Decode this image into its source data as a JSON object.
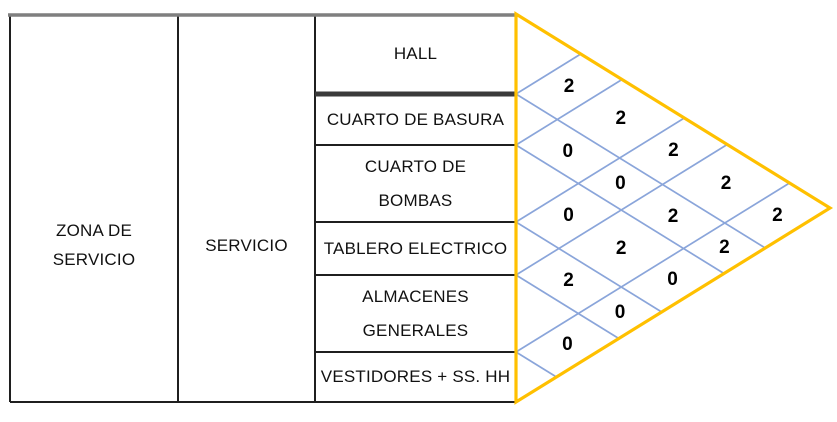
{
  "colors": {
    "background": "#FFFFFF",
    "triangle_border": "#FFC000",
    "lattice_line": "#8AA5DA",
    "table_line": "#1F1F1F",
    "table_top_line": "#7F7F7F",
    "hall_divider_line": "#3A3A3A",
    "text": "#111111"
  },
  "table": {
    "zone_label": "ZONA DE\nSERVICIO",
    "group_label": "SERVICIO",
    "rooms": [
      "HALL",
      "CUARTO DE BASURA",
      "CUARTO DE\nBOMBAS",
      "TABLERO ELECTRICO",
      "ALMACENES\nGENERALES",
      "VESTIDORES + SS. HH"
    ]
  },
  "matrix": {
    "type": "triangular-adjacency-matrix",
    "rooms": [
      "HALL",
      "CUARTO DE BASURA",
      "CUARTO DE BOMBAS",
      "TABLERO ELECTRICO",
      "ALMACENES GENERALES",
      "VESTIDORES + SS. HH"
    ],
    "cells": [
      {
        "room_a": 0,
        "room_b": 1,
        "value": "2"
      },
      {
        "room_a": 0,
        "room_b": 2,
        "value": "2"
      },
      {
        "room_a": 0,
        "room_b": 3,
        "value": "2"
      },
      {
        "room_a": 0,
        "room_b": 4,
        "value": "2"
      },
      {
        "room_a": 0,
        "room_b": 5,
        "value": "2"
      },
      {
        "room_a": 1,
        "room_b": 2,
        "value": "0"
      },
      {
        "room_a": 1,
        "room_b": 3,
        "value": "0"
      },
      {
        "room_a": 1,
        "room_b": 4,
        "value": "2"
      },
      {
        "room_a": 1,
        "room_b": 5,
        "value": "2"
      },
      {
        "room_a": 2,
        "room_b": 3,
        "value": "0"
      },
      {
        "room_a": 2,
        "room_b": 4,
        "value": "2"
      },
      {
        "room_a": 2,
        "room_b": 5,
        "value": "0"
      },
      {
        "room_a": 3,
        "room_b": 4,
        "value": "2"
      },
      {
        "room_a": 3,
        "room_b": 5,
        "value": "0"
      },
      {
        "room_a": 4,
        "room_b": 5,
        "value": "0"
      }
    ]
  }
}
